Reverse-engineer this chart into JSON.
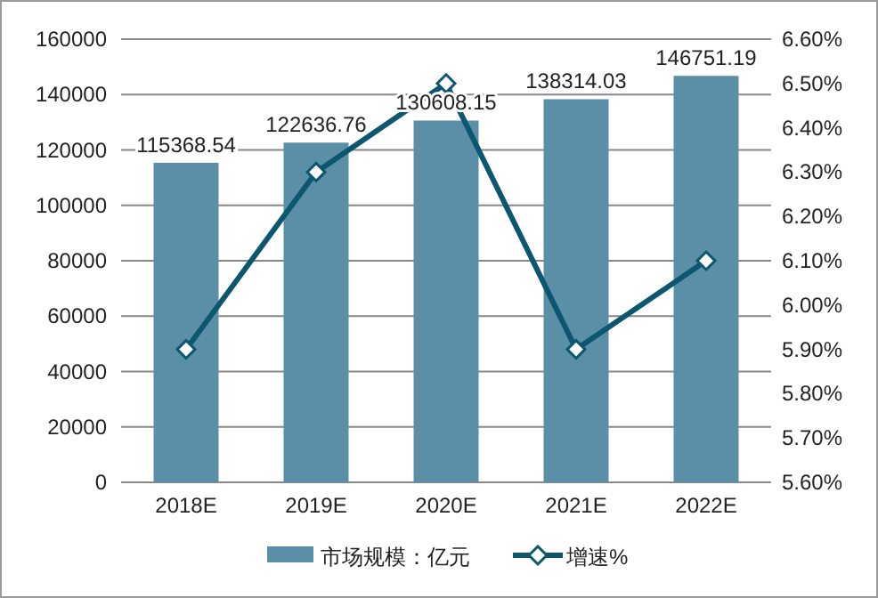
{
  "chart_data": {
    "type": "bar",
    "categories": [
      "2018E",
      "2019E",
      "2020E",
      "2021E",
      "2022E"
    ],
    "series": [
      {
        "name": "市场规模：亿元",
        "color": "#5b8fa8",
        "values": [
          115368.54,
          122636.76,
          130608.15,
          138314.03,
          146751.19
        ],
        "value_labels": [
          "115368.54",
          "122636.76",
          "130608.15",
          "138314.03",
          "146751.19"
        ]
      },
      {
        "name": "增速%",
        "type": "line",
        "axis": "y2",
        "color": "#0d5670",
        "marker": "diamond",
        "values": [
          5.9,
          6.3,
          6.5,
          5.9,
          6.1
        ]
      }
    ],
    "ylim": [
      0,
      160000
    ],
    "yticks": [
      0,
      20000,
      40000,
      60000,
      80000,
      100000,
      120000,
      140000,
      160000
    ],
    "y2lim": [
      5.6,
      6.6
    ],
    "y2ticks": [
      {
        "value": 5.6,
        "label": "5.60%"
      },
      {
        "value": 5.7,
        "label": "5.70%"
      },
      {
        "value": 5.8,
        "label": "5.80%"
      },
      {
        "value": 5.9,
        "label": "5.90%"
      },
      {
        "value": 6.0,
        "label": "6.00%"
      },
      {
        "value": 6.1,
        "label": "6.10%"
      },
      {
        "value": 6.2,
        "label": "6.20%"
      },
      {
        "value": 6.3,
        "label": "6.30%"
      },
      {
        "value": 6.4,
        "label": "6.40%"
      },
      {
        "value": 6.5,
        "label": "6.50%"
      },
      {
        "value": 6.6,
        "label": "6.60%"
      }
    ],
    "grid": "y",
    "legend": "bottom"
  }
}
